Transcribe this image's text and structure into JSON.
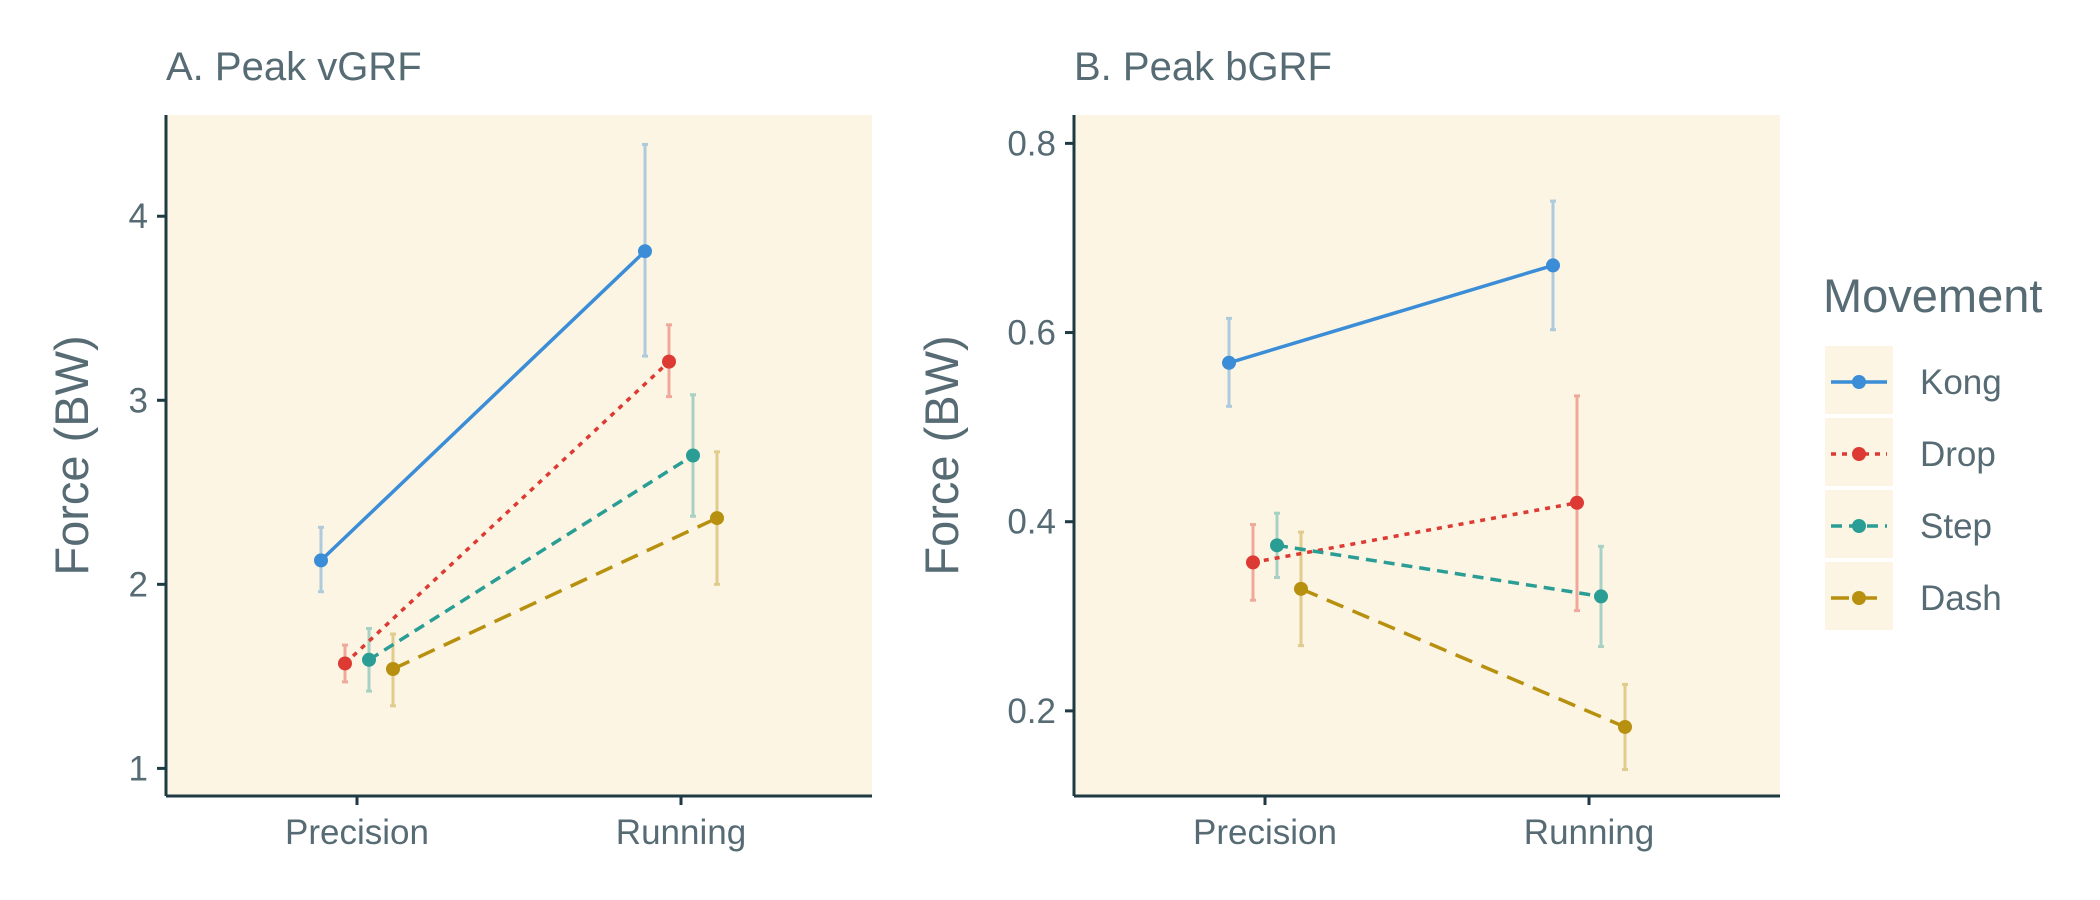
{
  "chart_data": [
    {
      "type": "line",
      "title": "A. Peak vGRF",
      "xlabel": "",
      "ylabel": "Force (BW)",
      "categories": [
        "Precision",
        "Running"
      ],
      "yticks": [
        1,
        2,
        3,
        4
      ],
      "ylim": [
        0.85,
        4.55
      ],
      "grid": false,
      "series": [
        {
          "name": "Kong",
          "values": [
            2.13,
            3.81
          ],
          "err_low": [
            1.96,
            3.24
          ],
          "err_high": [
            2.31,
            4.39
          ]
        },
        {
          "name": "Drop",
          "values": [
            1.57,
            3.21
          ],
          "err_low": [
            1.47,
            3.02
          ],
          "err_high": [
            1.67,
            3.41
          ]
        },
        {
          "name": "Step",
          "values": [
            1.59,
            2.7
          ],
          "err_low": [
            1.42,
            2.37
          ],
          "err_high": [
            1.76,
            3.03
          ]
        },
        {
          "name": "Dash",
          "values": [
            1.54,
            2.36
          ],
          "err_low": [
            1.34,
            2.0
          ],
          "err_high": [
            1.73,
            2.72
          ]
        }
      ]
    },
    {
      "type": "line",
      "title": "B. Peak bGRF",
      "xlabel": "",
      "ylabel": "Force (BW)",
      "categories": [
        "Precision",
        "Running"
      ],
      "yticks": [
        0.2,
        0.4,
        0.6,
        0.8
      ],
      "yticklabels": [
        "0.2",
        "0.4",
        "0.6",
        "0.8"
      ],
      "ylim": [
        0.11,
        0.83
      ],
      "grid": false,
      "series": [
        {
          "name": "Kong",
          "values": [
            0.568,
            0.671
          ],
          "err_low": [
            0.522,
            0.603
          ],
          "err_high": [
            0.615,
            0.739
          ]
        },
        {
          "name": "Drop",
          "values": [
            0.357,
            0.42
          ],
          "err_low": [
            0.317,
            0.306
          ],
          "err_high": [
            0.397,
            0.533
          ]
        },
        {
          "name": "Step",
          "values": [
            0.375,
            0.321
          ],
          "err_low": [
            0.341,
            0.268
          ],
          "err_high": [
            0.409,
            0.374
          ]
        },
        {
          "name": "Dash",
          "values": [
            0.329,
            0.183
          ],
          "err_low": [
            0.269,
            0.138
          ],
          "err_high": [
            0.389,
            0.228
          ]
        }
      ]
    }
  ],
  "legend": {
    "title": "Movement",
    "placement": "right",
    "items": [
      {
        "name": "Kong",
        "color": "#3a8dd6",
        "dash": "solid"
      },
      {
        "name": "Drop",
        "color": "#dc3a32",
        "dash": "dotted"
      },
      {
        "name": "Step",
        "color": "#2a9d95",
        "dash": "dashed"
      },
      {
        "name": "Dash",
        "color": "#b8900f",
        "dash": "longdash"
      }
    ]
  },
  "colors": {
    "panel_background": "#fcf5e3",
    "axis_line": "#1e3a43",
    "text": "#566b73"
  }
}
